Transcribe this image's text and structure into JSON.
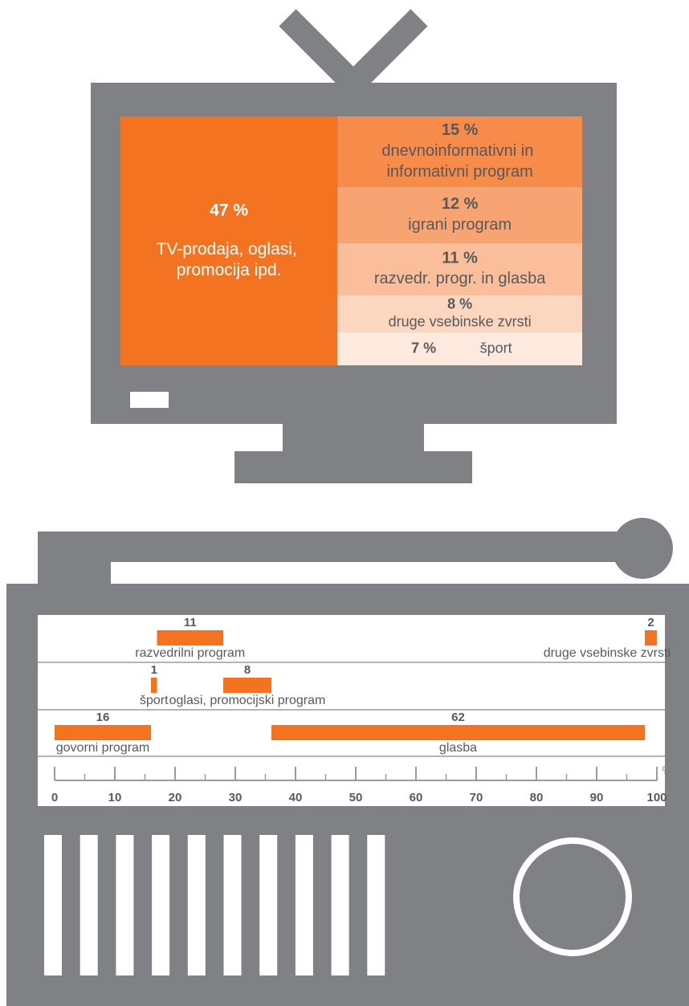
{
  "chart_data": [
    {
      "type": "treemap",
      "categories": [
        "TV-prodaja, oglasi, promocija ipd.",
        "dnevnoinformativni in informativni program",
        "igrani program",
        "razvedr. progr. in glasba",
        "druge vsebinske zvrsti",
        "šport"
      ],
      "values": [
        47,
        15,
        12,
        11,
        8,
        7
      ],
      "value_labels": [
        "47 %",
        "15 %",
        "12 %",
        "11 %",
        "8 %",
        "7 %"
      ],
      "colors": [
        "#f37321",
        "#f68b4a",
        "#f8a472",
        "#fabf9a",
        "#fcd7c0",
        "#fde9dd"
      ]
    },
    {
      "type": "bar",
      "categories": [
        "govorni program",
        "šport",
        "razvedrilni program",
        "oglasi, promocijski program",
        "glasba",
        "druge vsebinske zvrsti"
      ],
      "values": [
        16,
        1,
        11,
        8,
        62,
        2
      ],
      "color": "#f37321",
      "xlim": [
        0,
        100
      ],
      "xticks": [
        0,
        10,
        20,
        30,
        40,
        50,
        60,
        70,
        80,
        90,
        100
      ],
      "xminorticks": [
        5,
        15,
        25,
        35,
        45,
        55,
        65,
        75,
        85,
        95
      ],
      "xlabel": "%"
    }
  ]
}
